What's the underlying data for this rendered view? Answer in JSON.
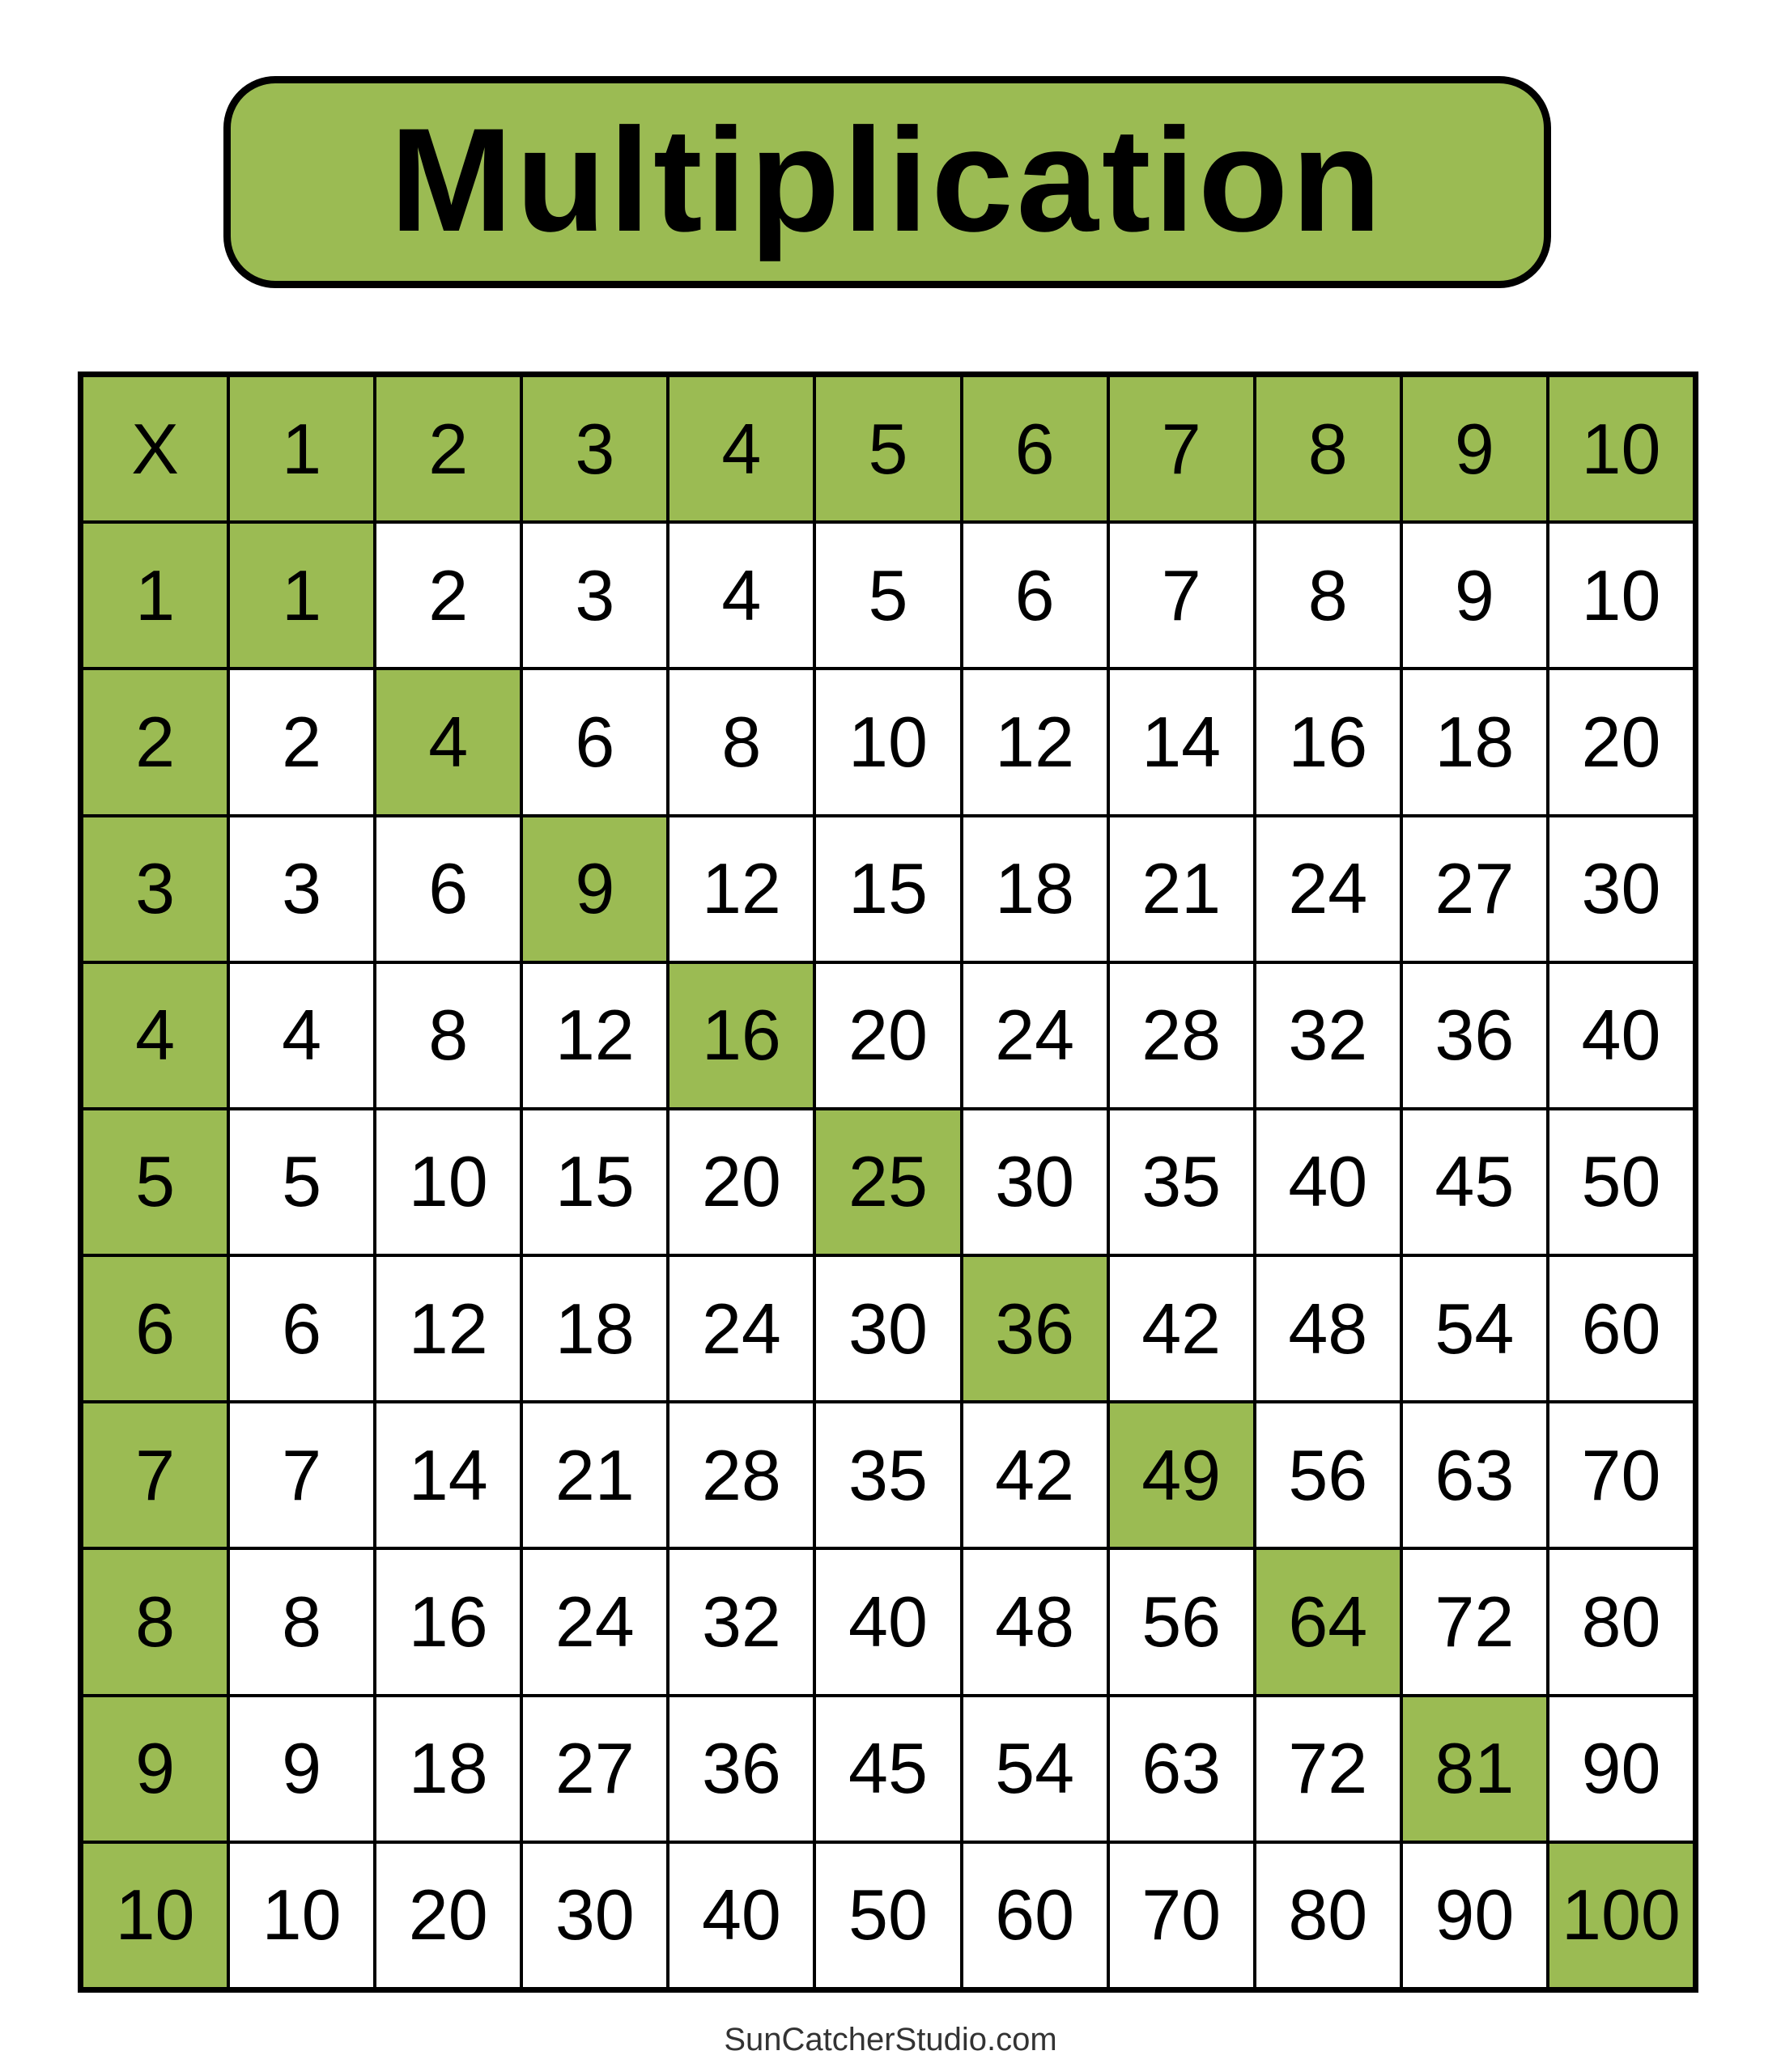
{
  "title": "Multiplication",
  "accent_color": "#9BBB53",
  "table": {
    "corner": "X",
    "column_headers": [
      "1",
      "2",
      "3",
      "4",
      "5",
      "6",
      "7",
      "8",
      "9",
      "10"
    ],
    "rows": [
      {
        "header": "1",
        "values": [
          "1",
          "2",
          "3",
          "4",
          "5",
          "6",
          "7",
          "8",
          "9",
          "10"
        ]
      },
      {
        "header": "2",
        "values": [
          "2",
          "4",
          "6",
          "8",
          "10",
          "12",
          "14",
          "16",
          "18",
          "20"
        ]
      },
      {
        "header": "3",
        "values": [
          "3",
          "6",
          "9",
          "12",
          "15",
          "18",
          "21",
          "24",
          "27",
          "30"
        ]
      },
      {
        "header": "4",
        "values": [
          "4",
          "8",
          "12",
          "16",
          "20",
          "24",
          "28",
          "32",
          "36",
          "40"
        ]
      },
      {
        "header": "5",
        "values": [
          "5",
          "10",
          "15",
          "20",
          "25",
          "30",
          "35",
          "40",
          "45",
          "50"
        ]
      },
      {
        "header": "6",
        "values": [
          "6",
          "12",
          "18",
          "24",
          "30",
          "36",
          "42",
          "48",
          "54",
          "60"
        ]
      },
      {
        "header": "7",
        "values": [
          "7",
          "14",
          "21",
          "28",
          "35",
          "42",
          "49",
          "56",
          "63",
          "70"
        ]
      },
      {
        "header": "8",
        "values": [
          "8",
          "16",
          "24",
          "32",
          "40",
          "48",
          "56",
          "64",
          "72",
          "80"
        ]
      },
      {
        "header": "9",
        "values": [
          "9",
          "18",
          "27",
          "36",
          "45",
          "54",
          "63",
          "72",
          "81",
          "90"
        ]
      },
      {
        "header": "10",
        "values": [
          "10",
          "20",
          "30",
          "40",
          "50",
          "60",
          "70",
          "80",
          "90",
          "100"
        ]
      }
    ],
    "highlight": "diagonal"
  },
  "footer": "SunCatcherStudio.com"
}
